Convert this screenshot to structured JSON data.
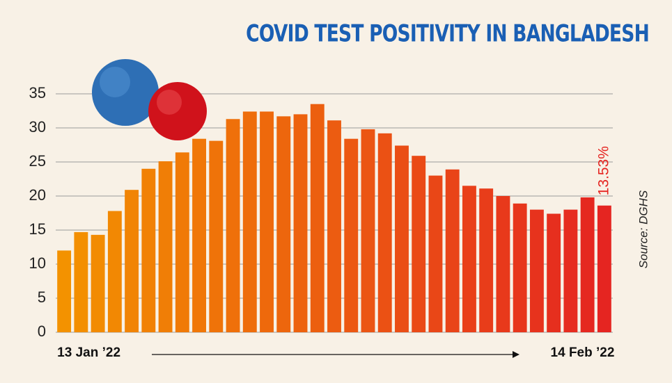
{
  "chart_data": {
    "type": "bar",
    "title": "COVID TEST POSITIVITY IN BANGLADESH",
    "source": "Source: DGHS",
    "annotation": "13.53%",
    "categories": [
      "13 Jan ’22",
      null,
      null,
      null,
      null,
      null,
      null,
      null,
      null,
      null,
      null,
      null,
      null,
      null,
      null,
      null,
      null,
      null,
      null,
      null,
      null,
      null,
      null,
      null,
      null,
      null,
      null,
      null,
      null,
      null,
      null,
      null,
      "14 Feb ’22"
    ],
    "values": [
      12.0,
      14.7,
      14.3,
      17.8,
      20.9,
      24.0,
      25.1,
      26.4,
      28.4,
      28.1,
      31.3,
      32.4,
      32.4,
      31.7,
      32.0,
      33.5,
      31.1,
      28.4,
      29.8,
      29.2,
      27.4,
      25.9,
      23.0,
      23.9,
      21.5,
      21.1,
      20.0,
      18.9,
      18.0,
      17.4,
      18.0,
      19.8,
      18.6
    ],
    "color_start": "#f39200",
    "color_end": "#e52521",
    "ylim": [
      0,
      35
    ],
    "yticks": [
      0,
      5,
      10,
      15,
      20,
      25,
      30,
      35
    ],
    "grid": true
  }
}
